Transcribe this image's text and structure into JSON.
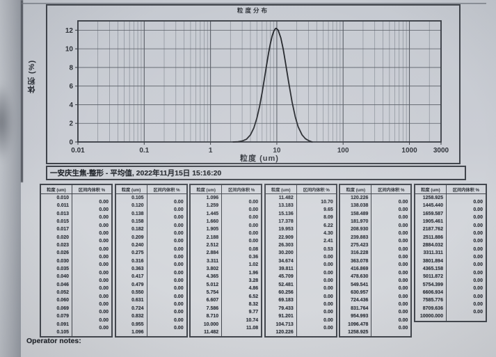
{
  "page": {
    "operator_notes_label": "Operator notes:"
  },
  "colors": {
    "ink": "#2b2f36",
    "curve": "#1e2126",
    "plot_border": "#34383f",
    "grid_major": "#565b63",
    "grid_minor": "#878d96",
    "paper": "#cfd3d8"
  },
  "chart": {
    "title": "粒度分布",
    "xlabel": "粒度 (um)",
    "ylabel": "体积 (%)",
    "caption": "一安庆生焦-整形 - 平均值, 2022年11月15日 15:16:20"
  },
  "chart_data": {
    "type": "line",
    "title": "粒度分布",
    "xlabel": "粒度 (um)",
    "ylabel": "体积 (%)",
    "x_scale": "log",
    "xlim": [
      0.01,
      3000
    ],
    "ylim": [
      0,
      13
    ],
    "x_ticks": [
      0.01,
      0.1,
      1,
      10,
      100,
      1000,
      3000
    ],
    "x_tick_labels": [
      "0.01",
      "0.1",
      "1",
      "10",
      "100",
      "1000",
      "3000"
    ],
    "y_ticks": [
      0,
      2,
      4,
      6,
      8,
      10,
      12
    ],
    "grid": true,
    "legend": "none",
    "peak": {
      "x": 9.8,
      "y": 12.2
    },
    "series": [
      {
        "name": "安庆生焦-整形 平均值",
        "x": [
          2.2,
          2.6,
          3.0,
          3.5,
          4.0,
          4.5,
          5.0,
          5.5,
          6.0,
          6.5,
          7.0,
          7.5,
          8.0,
          8.5,
          9.0,
          9.5,
          9.8,
          10.5,
          11.5,
          12.5,
          13.5,
          15,
          17,
          19,
          21,
          24,
          27,
          30,
          34
        ],
        "y": [
          0,
          0.03,
          0.1,
          0.31,
          0.76,
          1.5,
          2.54,
          3.83,
          5.29,
          6.8,
          8.24,
          9.52,
          10.58,
          11.37,
          11.9,
          12.16,
          12.2,
          12.0,
          11.17,
          9.94,
          8.55,
          6.52,
          4.27,
          2.68,
          1.63,
          0.76,
          0.35,
          0.16,
          0
        ]
      }
    ]
  },
  "table_headers": [
    "粒度 (um)",
    "区间内体积 %"
  ],
  "tables": [
    {
      "sizes": [
        "0.010",
        "0.011",
        "0.013",
        "0.015",
        "0.017",
        "0.020",
        "0.023",
        "0.026",
        "0.030",
        "0.035",
        "0.040",
        "0.046",
        "0.052",
        "0.060",
        "0.069",
        "0.079",
        "0.091",
        "0.105"
      ],
      "volumes": [
        "0.00",
        "0.00",
        "0.00",
        "0.00",
        "0.00",
        "0.00",
        "0.00",
        "0.00",
        "0.00",
        "0.00",
        "0.00",
        "0.00",
        "0.00",
        "0.00",
        "0.00",
        "0.00",
        "0.00"
      ]
    },
    {
      "sizes": [
        "0.105",
        "0.120",
        "0.138",
        "0.158",
        "0.182",
        "0.209",
        "0.240",
        "0.275",
        "0.316",
        "0.363",
        "0.417",
        "0.479",
        "0.550",
        "0.631",
        "0.724",
        "0.832",
        "0.955",
        "1.096"
      ],
      "volumes": [
        "0.00",
        "0.00",
        "0.00",
        "0.00",
        "0.00",
        "0.00",
        "0.00",
        "0.00",
        "0.00",
        "0.00",
        "0.00",
        "0.00",
        "0.00",
        "0.00",
        "0.00",
        "0.00",
        "0.00"
      ]
    },
    {
      "sizes": [
        "1.096",
        "1.259",
        "1.445",
        "1.660",
        "1.905",
        "2.188",
        "2.512",
        "2.884",
        "3.311",
        "3.802",
        "4.365",
        "5.012",
        "5.754",
        "6.607",
        "7.586",
        "8.710",
        "10.000",
        "11.482"
      ],
      "volumes": [
        "0.00",
        "0.00",
        "0.00",
        "0.00",
        "0.00",
        "0.00",
        "0.08",
        "0.36",
        "1.02",
        "1.96",
        "3.28",
        "4.86",
        "6.52",
        "8.32",
        "9.77",
        "10.74",
        "11.08"
      ]
    },
    {
      "sizes": [
        "11.482",
        "13.183",
        "15.136",
        "17.378",
        "19.953",
        "22.909",
        "26.303",
        "30.200",
        "34.674",
        "39.811",
        "45.709",
        "52.481",
        "60.256",
        "69.183",
        "79.433",
        "91.201",
        "104.713",
        "120.226"
      ],
      "volumes": [
        "10.70",
        "9.65",
        "8.09",
        "6.22",
        "4.30",
        "2.41",
        "0.53",
        "0.00",
        "0.00",
        "0.00",
        "0.00",
        "0.00",
        "0.00",
        "0.00",
        "0.00",
        "0.00",
        "0.00"
      ]
    },
    {
      "sizes": [
        "120.226",
        "138.038",
        "158.489",
        "181.970",
        "208.930",
        "239.883",
        "275.423",
        "316.228",
        "363.078",
        "416.869",
        "478.630",
        "549.541",
        "630.957",
        "724.436",
        "831.764",
        "954.993",
        "1096.478",
        "1258.925"
      ],
      "volumes": [
        "0.00",
        "0.00",
        "0.00",
        "0.00",
        "0.00",
        "0.00",
        "0.00",
        "0.00",
        "0.00",
        "0.00",
        "0.00",
        "0.00",
        "0.00",
        "0.00",
        "0.00",
        "0.00",
        "0.00"
      ]
    },
    {
      "sizes": [
        "1258.925",
        "1445.440",
        "1659.587",
        "1905.461",
        "2187.762",
        "2511.886",
        "2884.032",
        "3311.311",
        "3801.894",
        "4365.158",
        "5011.872",
        "5754.399",
        "6606.934",
        "7585.776",
        "8709.636",
        "10000.000"
      ],
      "volumes": [
        "0.00",
        "0.00",
        "0.00",
        "0.00",
        "0.00",
        "0.00",
        "0.00",
        "0.00",
        "0.00",
        "0.00",
        "0.00",
        "0.00",
        "0.00",
        "0.00",
        "0.00"
      ]
    }
  ]
}
